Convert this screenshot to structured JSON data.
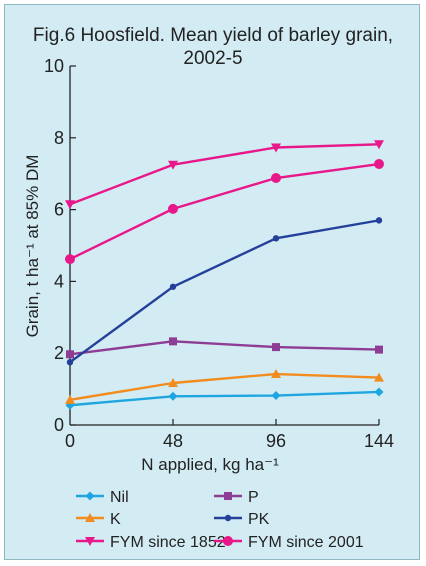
{
  "chart_data": {
    "type": "line",
    "title_line1": "Fig.6  Hoosfield. Mean yield of barley grain,",
    "title_line2": "2002-5",
    "ylabel": "Grain, t ha⁻¹ at 85% DM",
    "xlabel": "N applied, kg ha⁻¹",
    "x": [
      0,
      48,
      96,
      144
    ],
    "x_tick_labels": [
      "0",
      "48",
      "96",
      "144"
    ],
    "y_tick_labels": [
      "0",
      "2",
      "4",
      "6",
      "8",
      "10"
    ],
    "xlim": [
      0,
      144
    ],
    "ylim": [
      0,
      10
    ],
    "grid": false,
    "legend_position": "bottom",
    "series": [
      {
        "name": "Nil",
        "color": "#1fa6e0",
        "marker": "diamond",
        "values": [
          0.55,
          0.8,
          0.82,
          0.92
        ]
      },
      {
        "name": "P",
        "color": "#8d3d94",
        "marker": "square",
        "values": [
          1.97,
          2.33,
          2.17,
          2.1
        ]
      },
      {
        "name": "K",
        "color": "#f28c1e",
        "marker": "triangle-up",
        "values": [
          0.7,
          1.17,
          1.42,
          1.32
        ]
      },
      {
        "name": "PK",
        "color": "#24409a",
        "marker": "dot",
        "values": [
          1.75,
          3.85,
          5.2,
          5.7
        ]
      },
      {
        "name": "FYM since 1852",
        "color": "#e8178a",
        "marker": "triangle-down",
        "values": [
          6.15,
          7.25,
          7.73,
          7.82
        ]
      },
      {
        "name": "FYM since 2001",
        "color": "#e8178a",
        "marker": "circle",
        "values": [
          4.62,
          6.02,
          6.88,
          7.27
        ]
      }
    ]
  }
}
